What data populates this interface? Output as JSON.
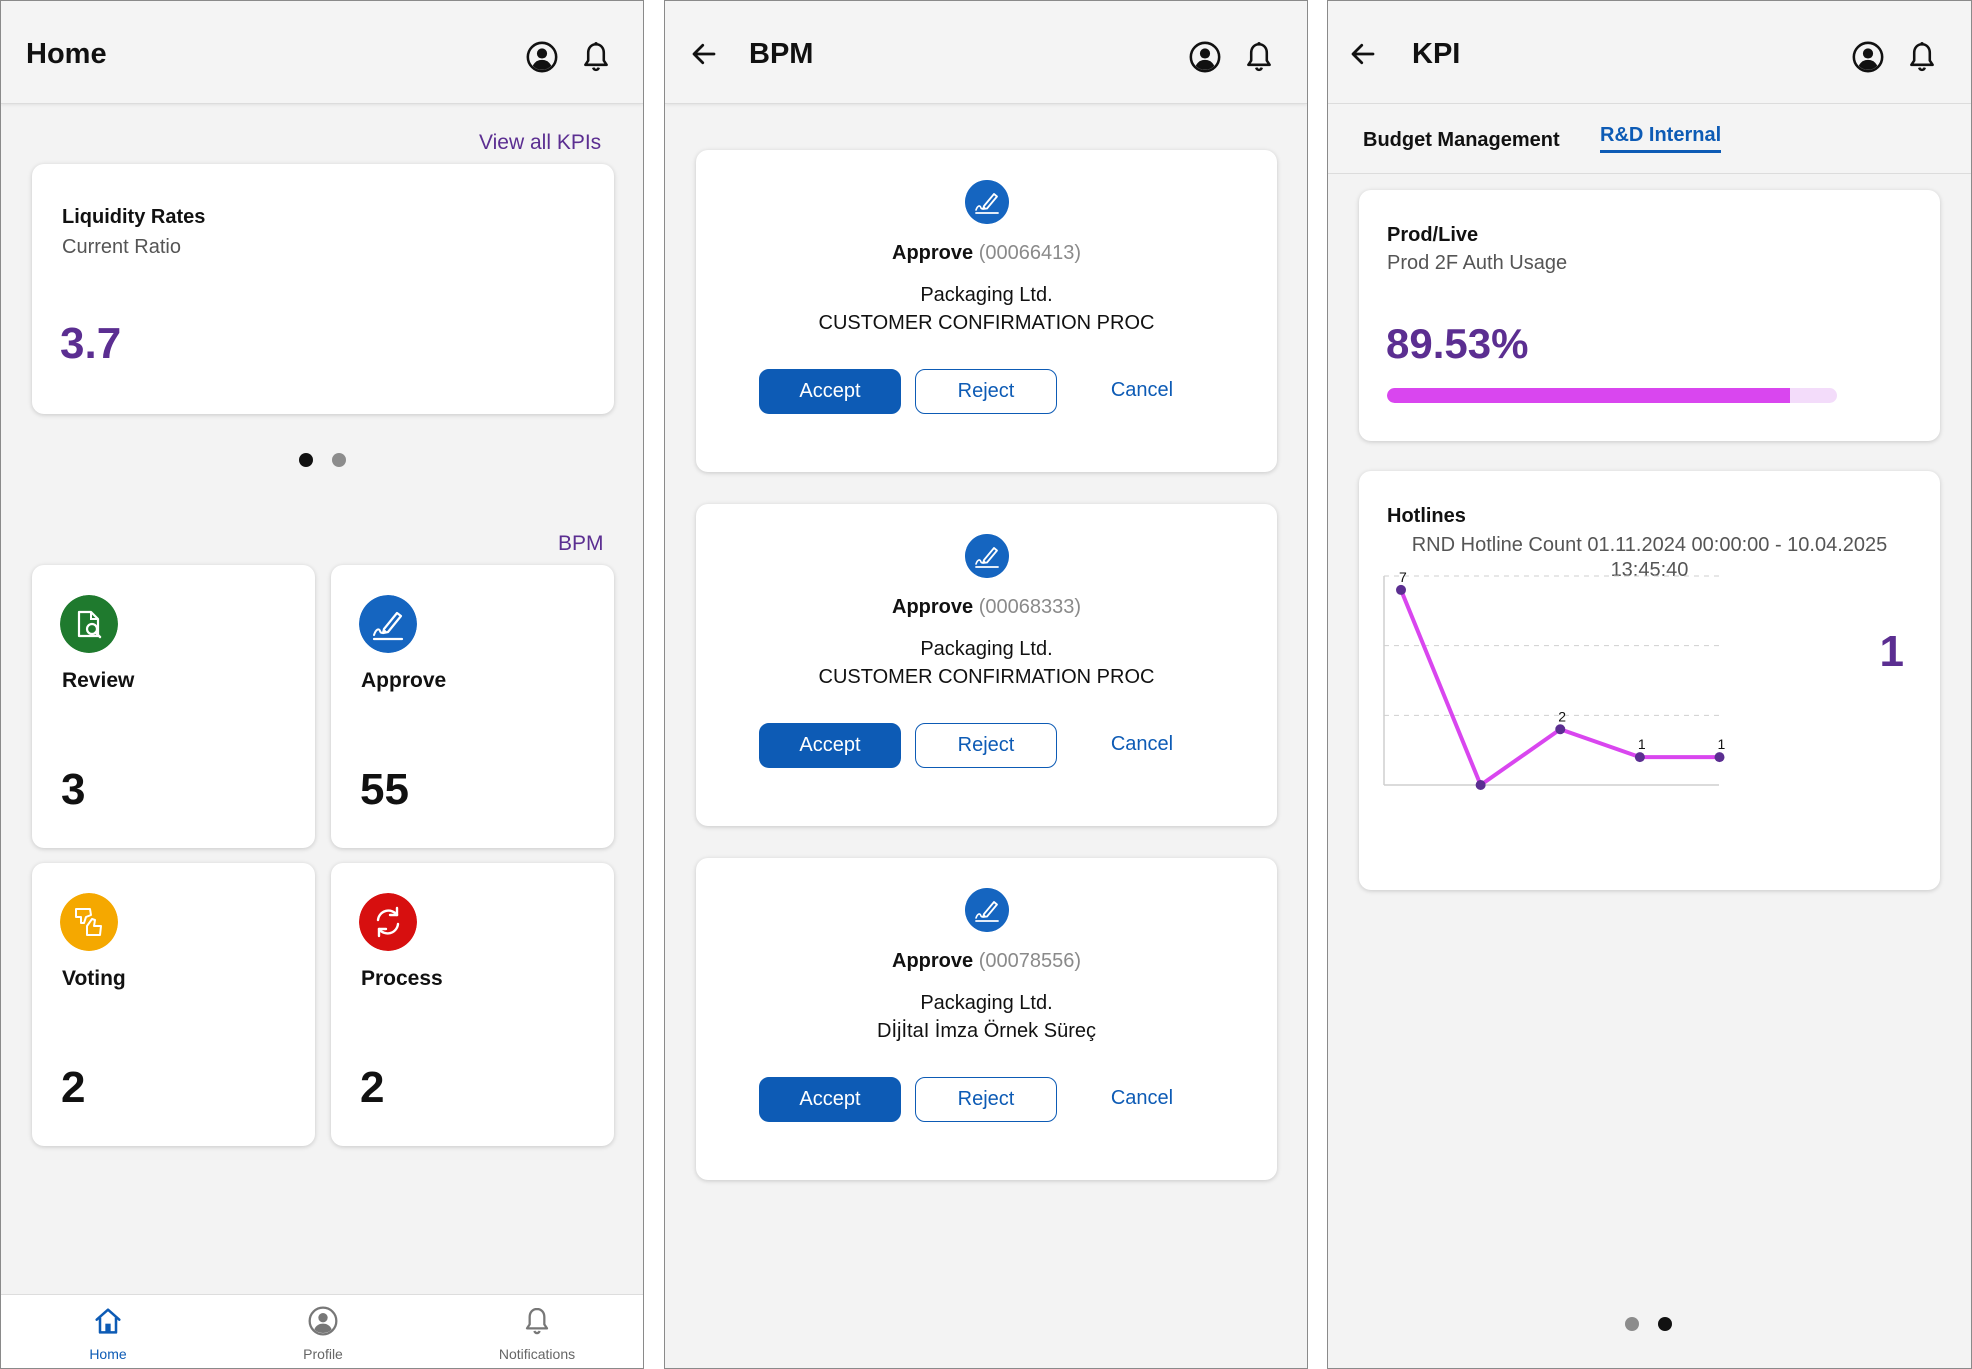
{
  "colors": {
    "primary_blue": "#0d5bb5",
    "purple": "#5b2e91",
    "magenta": "#d946ef",
    "review_green": "#1f7a2e",
    "voting_yellow": "#f5a800",
    "process_red": "#d70f0f"
  },
  "home": {
    "title": "Home",
    "view_all_kpis": "View all KPIs",
    "kpi_card": {
      "title": "Liquidity Rates",
      "subtitle": "Current Ratio",
      "value": "3.7"
    },
    "carousel": {
      "pages": 2,
      "active": 0
    },
    "bpm_section_label": "BPM",
    "tiles": [
      {
        "label": "Review",
        "count": "3",
        "icon": "review-icon"
      },
      {
        "label": "Approve",
        "count": "55",
        "icon": "signature-icon"
      },
      {
        "label": "Voting",
        "count": "2",
        "icon": "thumbs-vote-icon"
      },
      {
        "label": "Process",
        "count": "2",
        "icon": "refresh-icon"
      }
    ],
    "nav": [
      {
        "label": "Home",
        "icon": "home-icon",
        "active": true
      },
      {
        "label": "Profile",
        "icon": "profile-icon",
        "active": false
      },
      {
        "label": "Notifications",
        "icon": "bell-icon",
        "active": false
      }
    ]
  },
  "bpm": {
    "title": "BPM",
    "requests": [
      {
        "action": "Approve",
        "id": "(00066413)",
        "company": "Packaging Ltd.",
        "process": "CUSTOMER CONFIRMATION PROC"
      },
      {
        "action": "Approve",
        "id": "(00068333)",
        "company": "Packaging Ltd.",
        "process": "CUSTOMER CONFIRMATION PROC"
      },
      {
        "action": "Approve",
        "id": "(00078556)",
        "company": "Packaging Ltd.",
        "process": "DİjİtaI İmza Örnek Süreç"
      }
    ],
    "buttons": {
      "accept": "Accept",
      "reject": "Reject",
      "cancel": "Cancel"
    }
  },
  "kpi": {
    "title": "KPI",
    "tabs": [
      {
        "label": "Budget Management",
        "active": false
      },
      {
        "label": "R&D Internal",
        "active": true
      }
    ],
    "metric_card": {
      "title": "Prod/Live",
      "subtitle": "Prod 2F Auth Usage",
      "value": "89.53%",
      "progress": 0.8953
    },
    "hotlines_card": {
      "title": "Hotlines",
      "subtitle": "RND Hotline Count 01.11.2024 00:00:00 - 10.04.2025 13:45:40",
      "current": "1"
    },
    "carousel": {
      "pages": 2,
      "active": 1
    }
  },
  "chart_data": {
    "type": "line",
    "title": "",
    "xlabel": "",
    "ylabel": "",
    "series": [
      {
        "values": [
          7,
          0,
          2,
          1,
          1
        ],
        "labels": [
          "7",
          "",
          "2",
          "1",
          "1"
        ]
      }
    ],
    "ylim": [
      0,
      7.5
    ],
    "grid": true,
    "color": "#d946ef"
  }
}
